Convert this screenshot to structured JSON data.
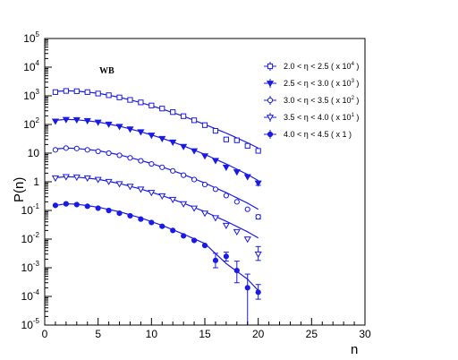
{
  "chart_data": {
    "type": "scatter",
    "title": "",
    "annotation": "WB",
    "xlabel": "n",
    "ylabel": "P(n)",
    "xlim": [
      0,
      30
    ],
    "ylim": [
      1e-05,
      100000
    ],
    "yscale": "log",
    "x_ticks": [
      "0",
      "5",
      "10",
      "15",
      "20",
      "25",
      "30"
    ],
    "y_ticks": [
      {
        "base": "10",
        "exp": "5"
      },
      {
        "base": "10",
        "exp": "4"
      },
      {
        "base": "10",
        "exp": "3"
      },
      {
        "base": "10",
        "exp": "2"
      },
      {
        "base": "10",
        "exp": ""
      },
      {
        "base": "1",
        "exp": ""
      },
      {
        "base": "10",
        "exp": "-1"
      },
      {
        "base": "10",
        "exp": "-2"
      },
      {
        "base": "10",
        "exp": "-3"
      },
      {
        "base": "10",
        "exp": "-4"
      },
      {
        "base": "10",
        "exp": "-5"
      }
    ],
    "legend_position": "top-right",
    "color": "#1a1ae6",
    "series": [
      {
        "name_main": "2.0 < η < 2.5 ( x 10",
        "name_exp": "4",
        "name_end": " )",
        "marker": "open-square",
        "x": [
          1,
          2,
          3,
          4,
          5,
          6,
          7,
          8,
          9,
          10,
          11,
          12,
          13,
          14,
          15,
          16,
          17,
          18,
          19,
          20
        ],
        "y": [
          1350,
          1480,
          1450,
          1350,
          1200,
          1050,
          880,
          720,
          590,
          460,
          360,
          270,
          195,
          140,
          95,
          60,
          30,
          28,
          18,
          12
        ],
        "err_up": [
          0,
          0,
          0,
          0,
          0,
          0,
          0,
          0,
          0,
          0,
          0,
          0,
          0,
          0,
          0,
          0,
          1.25,
          0.5,
          0,
          0.15
        ],
        "err_dn": [
          0,
          0,
          0,
          0,
          0,
          0,
          0,
          0,
          0,
          0,
          0,
          0,
          0,
          0,
          0,
          0,
          0.35,
          0.25,
          0,
          0.12
        ],
        "fit": [
          [
            1,
            1420
          ],
          [
            2,
            1500
          ],
          [
            3,
            1460
          ],
          [
            5,
            1230
          ],
          [
            7,
            890
          ],
          [
            9,
            580
          ],
          [
            11,
            345
          ],
          [
            13,
            195
          ],
          [
            15,
            100
          ],
          [
            17,
            50
          ],
          [
            19,
            23
          ],
          [
            20,
            15
          ]
        ]
      },
      {
        "name_main": "2.5 < η < 3.0 ( x 10",
        "name_exp": "3",
        "name_end": " )",
        "marker": "filled-triangle-down",
        "x": [
          1,
          2,
          3,
          4,
          5,
          6,
          7,
          8,
          9,
          10,
          11,
          12,
          13,
          14,
          15,
          16,
          17,
          18,
          19,
          20
        ],
        "y": [
          130,
          148,
          145,
          135,
          120,
          102,
          85,
          69,
          55,
          42,
          32,
          24,
          17,
          12,
          8,
          5.5,
          3.2,
          2.2,
          1.5,
          0.9
        ],
        "err_up": [
          0,
          0,
          0,
          0,
          0,
          0,
          0,
          0,
          0,
          0,
          0,
          0,
          0,
          0,
          0,
          0,
          0,
          0,
          0,
          0.15
        ],
        "err_dn": [
          0,
          0,
          0,
          0,
          0,
          0,
          0,
          0,
          0,
          0,
          0,
          0,
          0,
          0,
          0,
          0,
          0,
          0,
          0,
          0.15
        ],
        "fit": [
          [
            1,
            140
          ],
          [
            2,
            150
          ],
          [
            3,
            146
          ],
          [
            5,
            122
          ],
          [
            7,
            87
          ],
          [
            9,
            56
          ],
          [
            11,
            33
          ],
          [
            13,
            18
          ],
          [
            15,
            9
          ],
          [
            17,
            4.2
          ],
          [
            19,
            1.8
          ],
          [
            20,
            1.1
          ]
        ]
      },
      {
        "name_main": "3.0 < η < 3.5 ( x 10",
        "name_exp": "2",
        "name_end": " )",
        "marker": "open-circle",
        "x": [
          1,
          2,
          3,
          4,
          5,
          6,
          7,
          8,
          9,
          10,
          11,
          12,
          13,
          14,
          15,
          16,
          17,
          18,
          19,
          20
        ],
        "y": [
          13,
          15,
          14.5,
          13,
          11.5,
          10,
          8.4,
          6.8,
          5.4,
          4.2,
          3.2,
          2.4,
          1.7,
          1.2,
          0.8,
          0.55,
          0.33,
          0.2,
          0.11,
          0.06
        ],
        "err_up": [
          0,
          0,
          0,
          0,
          0,
          0,
          0,
          0,
          0,
          0,
          0,
          0,
          0,
          0,
          0,
          0,
          0,
          0,
          0,
          0.01
        ],
        "err_dn": [
          0,
          0,
          0,
          0,
          0,
          0,
          0,
          0,
          0,
          0,
          0,
          0,
          0,
          0,
          0,
          0,
          0,
          0,
          0,
          0.01
        ],
        "fit": [
          [
            1,
            14
          ],
          [
            2,
            15
          ],
          [
            3,
            14.6
          ],
          [
            5,
            12.2
          ],
          [
            7,
            8.7
          ],
          [
            9,
            5.6
          ],
          [
            11,
            3.3
          ],
          [
            13,
            1.8
          ],
          [
            15,
            0.9
          ],
          [
            17,
            0.42
          ],
          [
            19,
            0.18
          ],
          [
            20,
            0.11
          ]
        ]
      },
      {
        "name_main": "3.5 < η < 4.0 ( x 10",
        "name_exp": "1",
        "name_end": " )",
        "marker": "open-triangle-down",
        "x": [
          1,
          2,
          3,
          4,
          5,
          6,
          7,
          8,
          9,
          10,
          11,
          12,
          13,
          14,
          15,
          16,
          17,
          18,
          19,
          20
        ],
        "y": [
          1.35,
          1.5,
          1.45,
          1.35,
          1.2,
          1.02,
          0.85,
          0.69,
          0.55,
          0.42,
          0.32,
          0.24,
          0.17,
          0.12,
          0.08,
          0.055,
          0.03,
          0.018,
          0.01,
          0.003
        ],
        "err_up": [
          0,
          0,
          0,
          0,
          0,
          0,
          0,
          0,
          0,
          0,
          0,
          0,
          0,
          0,
          0,
          0,
          0,
          0,
          0,
          0.0025
        ],
        "err_dn": [
          0,
          0,
          0,
          0,
          0,
          0,
          0,
          0,
          0,
          0,
          0,
          0,
          0,
          0,
          0,
          0,
          0,
          0,
          0,
          0.0012
        ],
        "fit": [
          [
            1,
            1.4
          ],
          [
            2,
            1.5
          ],
          [
            3,
            1.46
          ],
          [
            5,
            1.22
          ],
          [
            7,
            0.87
          ],
          [
            9,
            0.56
          ],
          [
            11,
            0.33
          ],
          [
            13,
            0.18
          ],
          [
            15,
            0.09
          ],
          [
            17,
            0.042
          ],
          [
            19,
            0.018
          ],
          [
            20,
            0.011
          ]
        ]
      },
      {
        "name_main": "4.0 < η < 4.5 ( x 1 )",
        "name_exp": "",
        "name_end": "",
        "marker": "filled-circle",
        "x": [
          1,
          2,
          3,
          4,
          5,
          6,
          7,
          8,
          9,
          10,
          11,
          12,
          13,
          14,
          15,
          16,
          17,
          18,
          19,
          20
        ],
        "y": [
          0.15,
          0.17,
          0.16,
          0.14,
          0.12,
          0.1,
          0.08,
          0.065,
          0.05,
          0.038,
          0.028,
          0.02,
          0.013,
          0.009,
          0.006,
          0.0018,
          0.0025,
          0.0008,
          0.0002,
          0.00014
        ],
        "err_up": [
          0,
          0,
          0,
          0,
          0,
          0,
          0,
          0,
          0,
          0,
          0,
          0,
          0,
          0,
          0,
          0.0014,
          0.001,
          0.0009,
          0.0004,
          0.00012
        ],
        "err_dn": [
          0,
          0,
          0,
          0,
          0,
          0,
          0,
          0,
          0,
          0,
          0,
          0,
          0,
          0,
          0,
          0.0008,
          0.0008,
          0.0005,
          0.00019,
          6e-05
        ],
        "fit": [
          [
            1,
            0.15
          ],
          [
            2,
            0.17
          ],
          [
            3,
            0.165
          ],
          [
            5,
            0.13
          ],
          [
            7,
            0.09
          ],
          [
            9,
            0.055
          ],
          [
            11,
            0.03
          ],
          [
            13,
            0.015
          ],
          [
            15,
            0.007
          ],
          [
            17,
            0.0014
          ],
          [
            19,
            0.0004
          ],
          [
            20,
            0.00016
          ]
        ]
      }
    ]
  }
}
